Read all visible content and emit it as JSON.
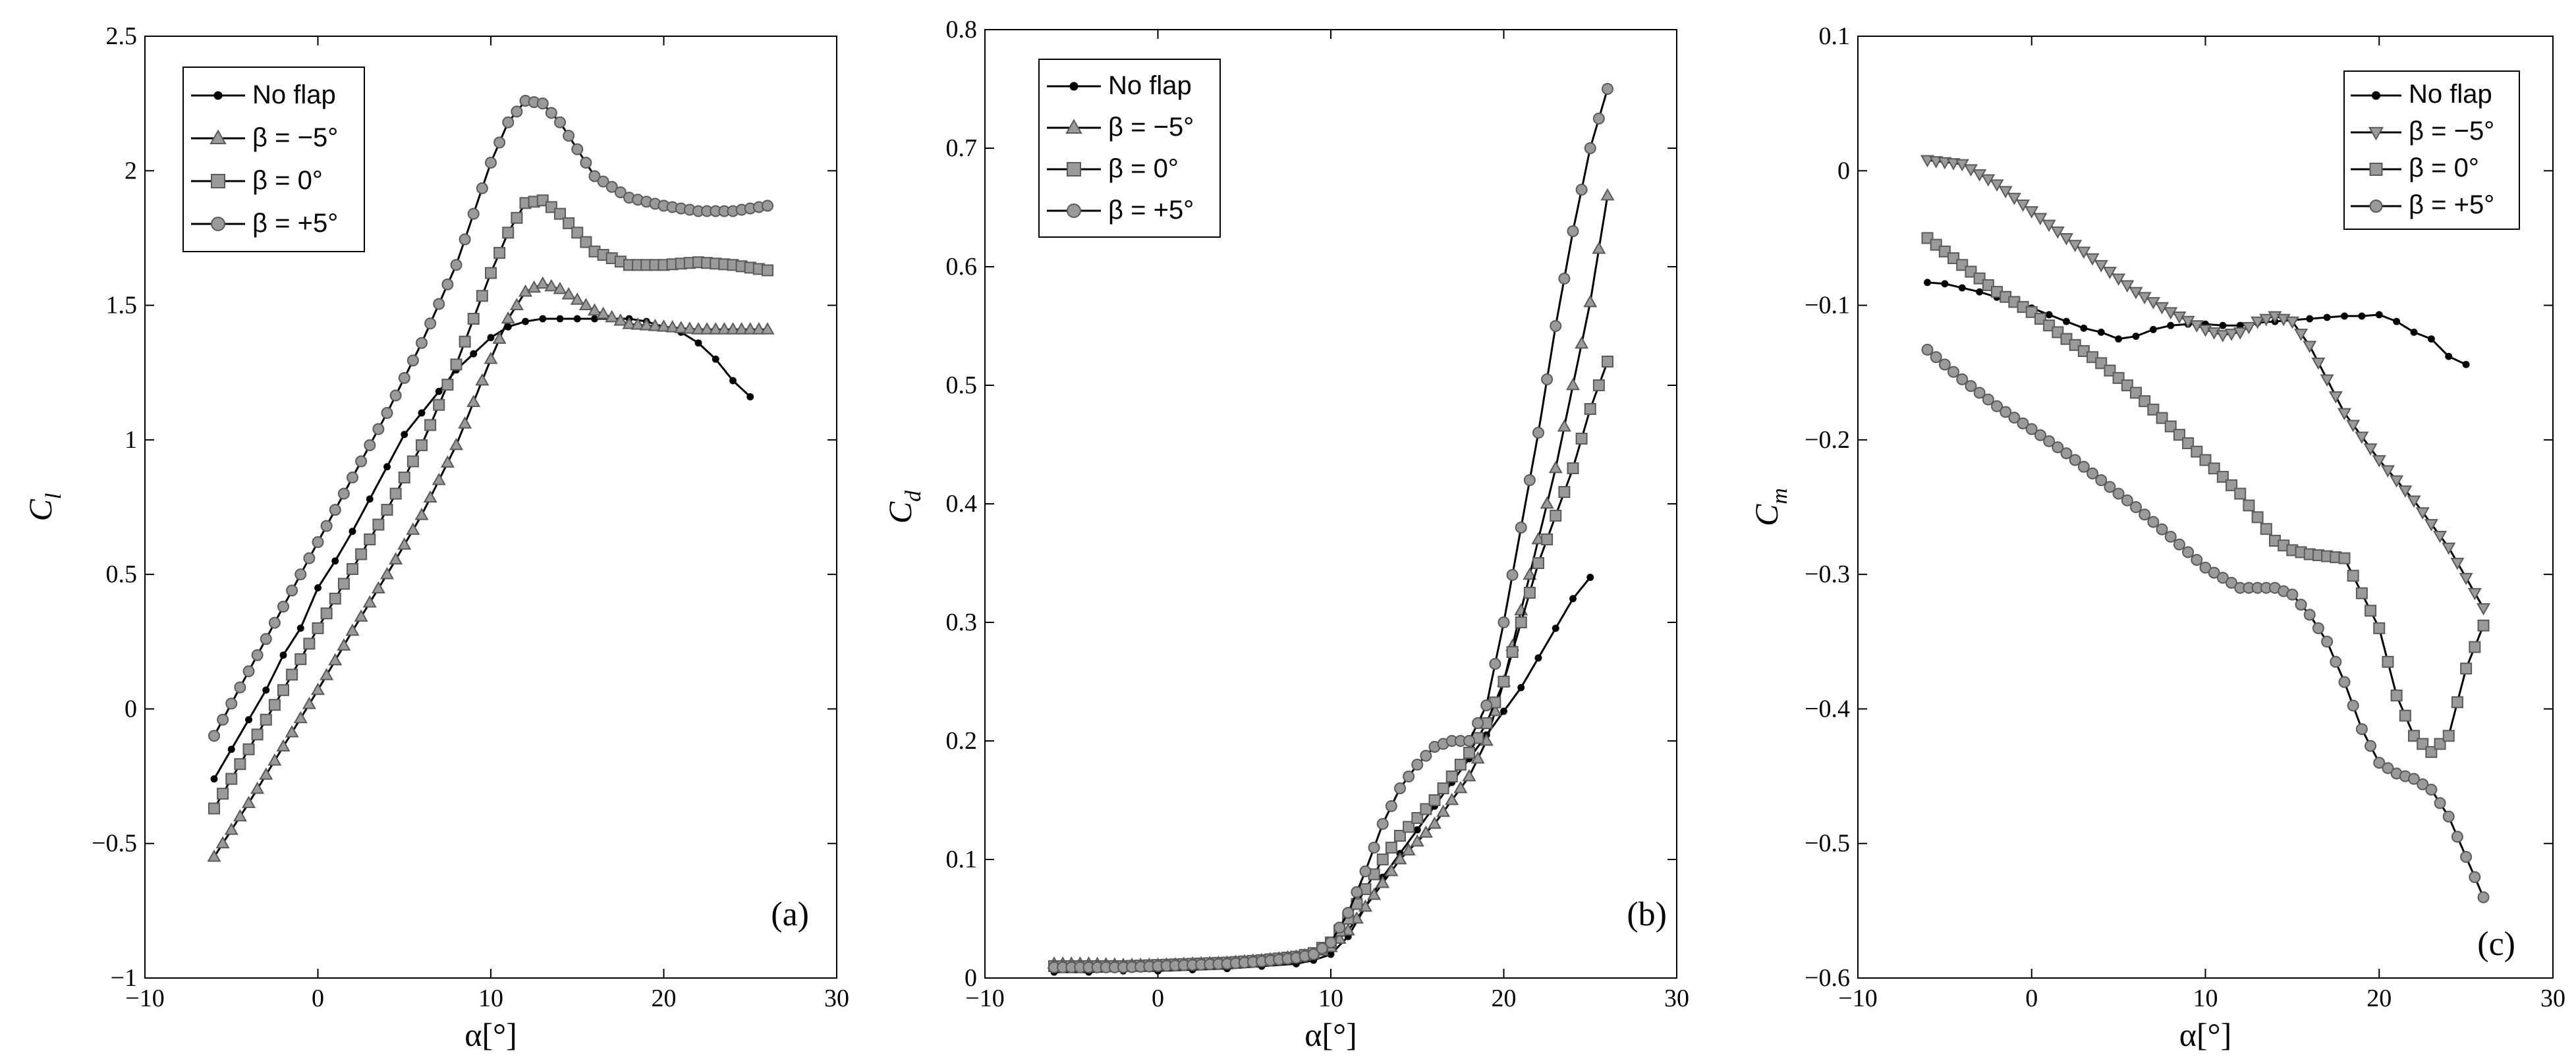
{
  "colors": {
    "line": "#000000",
    "marker_fill": "#9a9a9a",
    "marker_edge": "#5a5a5a",
    "background": "#ffffff"
  },
  "legend_labels": [
    "No flap",
    "β = −5°",
    "β = 0°",
    "β = +5°"
  ],
  "panels": [
    {
      "tag": "(a)",
      "xlabel": "α[°]",
      "ylabel_main": "C",
      "ylabel_sub": "l",
      "x_ticks": [
        "−10",
        "0",
        "10",
        "20",
        "30"
      ],
      "y_ticks": [
        "−1",
        "−0.5",
        "0",
        "0.5",
        "1",
        "1.5",
        "2",
        "2.5"
      ]
    },
    {
      "tag": "(b)",
      "xlabel": "α[°]",
      "ylabel_main": "C",
      "ylabel_sub": "d",
      "x_ticks": [
        "−10",
        "0",
        "10",
        "20",
        "30"
      ],
      "y_ticks": [
        "0",
        "0.1",
        "0.2",
        "0.3",
        "0.4",
        "0.5",
        "0.6",
        "0.7",
        "0.8"
      ]
    },
    {
      "tag": "(c)",
      "xlabel": "α[°]",
      "ylabel_main": "C",
      "ylabel_sub": "m",
      "x_ticks": [
        "−10",
        "0",
        "10",
        "20",
        "30"
      ],
      "y_ticks": [
        "−0.6",
        "−0.5",
        "−0.4",
        "−0.3",
        "−0.2",
        "−0.1",
        "0",
        "0.1"
      ]
    }
  ],
  "chart_data": [
    {
      "type": "line",
      "title": "",
      "xlabel": "α[°]",
      "ylabel": "C_l",
      "xlim": [
        -10,
        30
      ],
      "ylim": [
        -1,
        2.5
      ],
      "xticks": [
        -10,
        0,
        10,
        20,
        30
      ],
      "yticks": [
        -1,
        -0.5,
        0,
        0.5,
        1,
        1.5,
        2,
        2.5
      ],
      "grid": false,
      "legend_position": "top-left",
      "annotation": "(a)",
      "series": [
        {
          "name": "No flap",
          "marker": "dot",
          "x": [
            -6,
            -5,
            -4,
            -3,
            -2,
            -1,
            0,
            1,
            2,
            3,
            4,
            5,
            6,
            7,
            8,
            9,
            10,
            11,
            12,
            13,
            14,
            15,
            16,
            17,
            18,
            19,
            20,
            21,
            22,
            23,
            24,
            25
          ],
          "y": [
            -0.26,
            -0.15,
            -0.04,
            0.07,
            0.2,
            0.3,
            0.45,
            0.55,
            0.66,
            0.78,
            0.9,
            1.02,
            1.1,
            1.18,
            1.26,
            1.32,
            1.38,
            1.42,
            1.44,
            1.45,
            1.45,
            1.45,
            1.45,
            1.45,
            1.45,
            1.44,
            1.42,
            1.4,
            1.36,
            1.3,
            1.22,
            1.16
          ]
        },
        {
          "name": "β = −5°",
          "marker": "triangle-up",
          "x": [
            -6,
            -4,
            -2,
            0,
            2,
            4,
            6,
            8,
            10,
            11,
            12,
            13,
            14,
            16,
            18,
            20,
            22,
            24,
            26
          ],
          "y": [
            -0.55,
            -0.35,
            -0.14,
            0.07,
            0.29,
            0.5,
            0.72,
            0.98,
            1.3,
            1.45,
            1.55,
            1.58,
            1.56,
            1.48,
            1.43,
            1.42,
            1.41,
            1.41,
            1.41
          ]
        },
        {
          "name": "β = 0°",
          "marker": "square",
          "x": [
            -6,
            -4,
            -2,
            0,
            2,
            4,
            6,
            8,
            10,
            11,
            12,
            13,
            14,
            16,
            18,
            20,
            22,
            24,
            26
          ],
          "y": [
            -0.37,
            -0.15,
            0.07,
            0.3,
            0.52,
            0.74,
            0.98,
            1.28,
            1.62,
            1.77,
            1.88,
            1.89,
            1.84,
            1.7,
            1.65,
            1.65,
            1.66,
            1.65,
            1.63
          ]
        },
        {
          "name": "β = +5°",
          "marker": "circle",
          "x": [
            -6,
            -4,
            -2,
            0,
            2,
            4,
            6,
            8,
            10,
            11,
            12,
            13,
            14,
            16,
            18,
            20,
            22,
            24,
            26
          ],
          "y": [
            -0.1,
            0.14,
            0.38,
            0.62,
            0.86,
            1.1,
            1.36,
            1.65,
            2.03,
            2.18,
            2.26,
            2.25,
            2.18,
            1.98,
            1.9,
            1.87,
            1.85,
            1.85,
            1.87
          ]
        }
      ]
    },
    {
      "type": "line",
      "title": "",
      "xlabel": "α[°]",
      "ylabel": "C_d",
      "xlim": [
        -10,
        30
      ],
      "ylim": [
        0,
        0.8
      ],
      "xticks": [
        -10,
        0,
        10,
        20,
        30
      ],
      "yticks": [
        0,
        0.1,
        0.2,
        0.3,
        0.4,
        0.5,
        0.6,
        0.7,
        0.8
      ],
      "grid": false,
      "legend_position": "top-left",
      "annotation": "(b)",
      "series": [
        {
          "name": "No flap",
          "marker": "dot",
          "x": [
            -6,
            -4,
            -2,
            0,
            2,
            4,
            6,
            8,
            9,
            10,
            11,
            12,
            13,
            14,
            15,
            16,
            17,
            18,
            19,
            20,
            21,
            22,
            23,
            24,
            25
          ],
          "y": [
            0.005,
            0.005,
            0.006,
            0.006,
            0.007,
            0.008,
            0.01,
            0.012,
            0.015,
            0.02,
            0.035,
            0.06,
            0.085,
            0.105,
            0.125,
            0.145,
            0.165,
            0.185,
            0.205,
            0.225,
            0.245,
            0.27,
            0.295,
            0.32,
            0.338
          ]
        },
        {
          "name": "β = −5°",
          "marker": "triangle-up",
          "x": [
            -6,
            -4,
            -2,
            0,
            2,
            4,
            6,
            8,
            9,
            10,
            11,
            12,
            13,
            14,
            15,
            16,
            17,
            18,
            19,
            20,
            21,
            22,
            23,
            24,
            25,
            26
          ],
          "y": [
            0.012,
            0.012,
            0.011,
            0.011,
            0.012,
            0.013,
            0.015,
            0.018,
            0.02,
            0.026,
            0.04,
            0.06,
            0.08,
            0.1,
            0.115,
            0.13,
            0.15,
            0.17,
            0.2,
            0.25,
            0.31,
            0.37,
            0.43,
            0.5,
            0.57,
            0.66
          ]
        },
        {
          "name": "β = 0°",
          "marker": "square",
          "x": [
            -6,
            -4,
            -2,
            0,
            2,
            4,
            6,
            8,
            9,
            10,
            11,
            12,
            13,
            14,
            15,
            16,
            17,
            18,
            19,
            20,
            21,
            22,
            23,
            24,
            25,
            26
          ],
          "y": [
            0.01,
            0.01,
            0.01,
            0.011,
            0.012,
            0.013,
            0.015,
            0.018,
            0.021,
            0.03,
            0.05,
            0.075,
            0.1,
            0.12,
            0.135,
            0.15,
            0.17,
            0.19,
            0.215,
            0.25,
            0.3,
            0.35,
            0.39,
            0.43,
            0.48,
            0.52
          ]
        },
        {
          "name": "β = +5°",
          "marker": "circle",
          "x": [
            -6,
            -4,
            -2,
            0,
            2,
            4,
            6,
            8,
            9,
            10,
            11,
            12,
            13,
            14,
            15,
            16,
            17,
            18,
            19,
            20,
            21,
            22,
            23,
            24,
            25,
            26
          ],
          "y": [
            0.009,
            0.009,
            0.009,
            0.01,
            0.011,
            0.012,
            0.014,
            0.017,
            0.02,
            0.03,
            0.055,
            0.09,
            0.13,
            0.16,
            0.18,
            0.195,
            0.2,
            0.2,
            0.23,
            0.3,
            0.38,
            0.46,
            0.55,
            0.63,
            0.7,
            0.75
          ]
        }
      ]
    },
    {
      "type": "line",
      "title": "",
      "xlabel": "α[°]",
      "ylabel": "C_m",
      "xlim": [
        -10,
        30
      ],
      "ylim": [
        -0.6,
        0.1
      ],
      "xticks": [
        -10,
        0,
        10,
        20,
        30
      ],
      "yticks": [
        -0.6,
        -0.5,
        -0.4,
        -0.3,
        -0.2,
        -0.1,
        0,
        0.1
      ],
      "grid": false,
      "legend_position": "top-right",
      "annotation": "(c)",
      "series": [
        {
          "name": "No flap",
          "marker": "dot",
          "x": [
            -6,
            -5,
            -4,
            -3,
            -2,
            -1,
            0,
            1,
            2,
            3,
            4,
            5,
            6,
            7,
            8,
            9,
            10,
            11,
            12,
            13,
            14,
            15,
            16,
            17,
            18,
            19,
            20,
            21,
            22,
            23,
            24,
            25
          ],
          "y": [
            -0.083,
            -0.084,
            -0.087,
            -0.09,
            -0.094,
            -0.098,
            -0.102,
            -0.107,
            -0.112,
            -0.117,
            -0.12,
            -0.125,
            -0.123,
            -0.118,
            -0.115,
            -0.114,
            -0.114,
            -0.115,
            -0.115,
            -0.113,
            -0.112,
            -0.111,
            -0.11,
            -0.109,
            -0.108,
            -0.108,
            -0.107,
            -0.112,
            -0.12,
            -0.125,
            -0.138,
            -0.144
          ]
        },
        {
          "name": "β = −5°",
          "marker": "triangle-down",
          "x": [
            -6,
            -4,
            -2,
            0,
            2,
            4,
            6,
            8,
            10,
            11,
            12,
            13,
            14,
            15,
            16,
            18,
            20,
            22,
            24,
            26
          ],
          "y": [
            0.008,
            0.005,
            -0.01,
            -0.03,
            -0.05,
            -0.07,
            -0.09,
            -0.105,
            -0.118,
            -0.122,
            -0.12,
            -0.112,
            -0.108,
            -0.112,
            -0.13,
            -0.18,
            -0.215,
            -0.245,
            -0.28,
            -0.325
          ]
        },
        {
          "name": "β = 0°",
          "marker": "square",
          "x": [
            -6,
            -4,
            -2,
            0,
            2,
            4,
            6,
            8,
            10,
            12,
            14,
            15,
            16,
            18,
            20,
            21,
            22,
            23,
            24,
            25,
            26
          ],
          "y": [
            -0.05,
            -0.07,
            -0.09,
            -0.105,
            -0.125,
            -0.143,
            -0.165,
            -0.19,
            -0.215,
            -0.24,
            -0.275,
            -0.282,
            -0.285,
            -0.288,
            -0.34,
            -0.39,
            -0.42,
            -0.432,
            -0.42,
            -0.37,
            -0.338
          ]
        },
        {
          "name": "β = +5°",
          "marker": "circle",
          "x": [
            -6,
            -4,
            -2,
            0,
            2,
            4,
            6,
            8,
            10,
            12,
            13,
            14,
            15,
            16,
            17,
            18,
            19,
            20,
            21,
            22,
            23,
            24,
            25,
            26
          ],
          "y": [
            -0.133,
            -0.155,
            -0.175,
            -0.192,
            -0.21,
            -0.23,
            -0.25,
            -0.272,
            -0.295,
            -0.31,
            -0.31,
            -0.31,
            -0.315,
            -0.33,
            -0.35,
            -0.38,
            -0.415,
            -0.44,
            -0.448,
            -0.452,
            -0.46,
            -0.48,
            -0.51,
            -0.54
          ]
        }
      ]
    }
  ]
}
